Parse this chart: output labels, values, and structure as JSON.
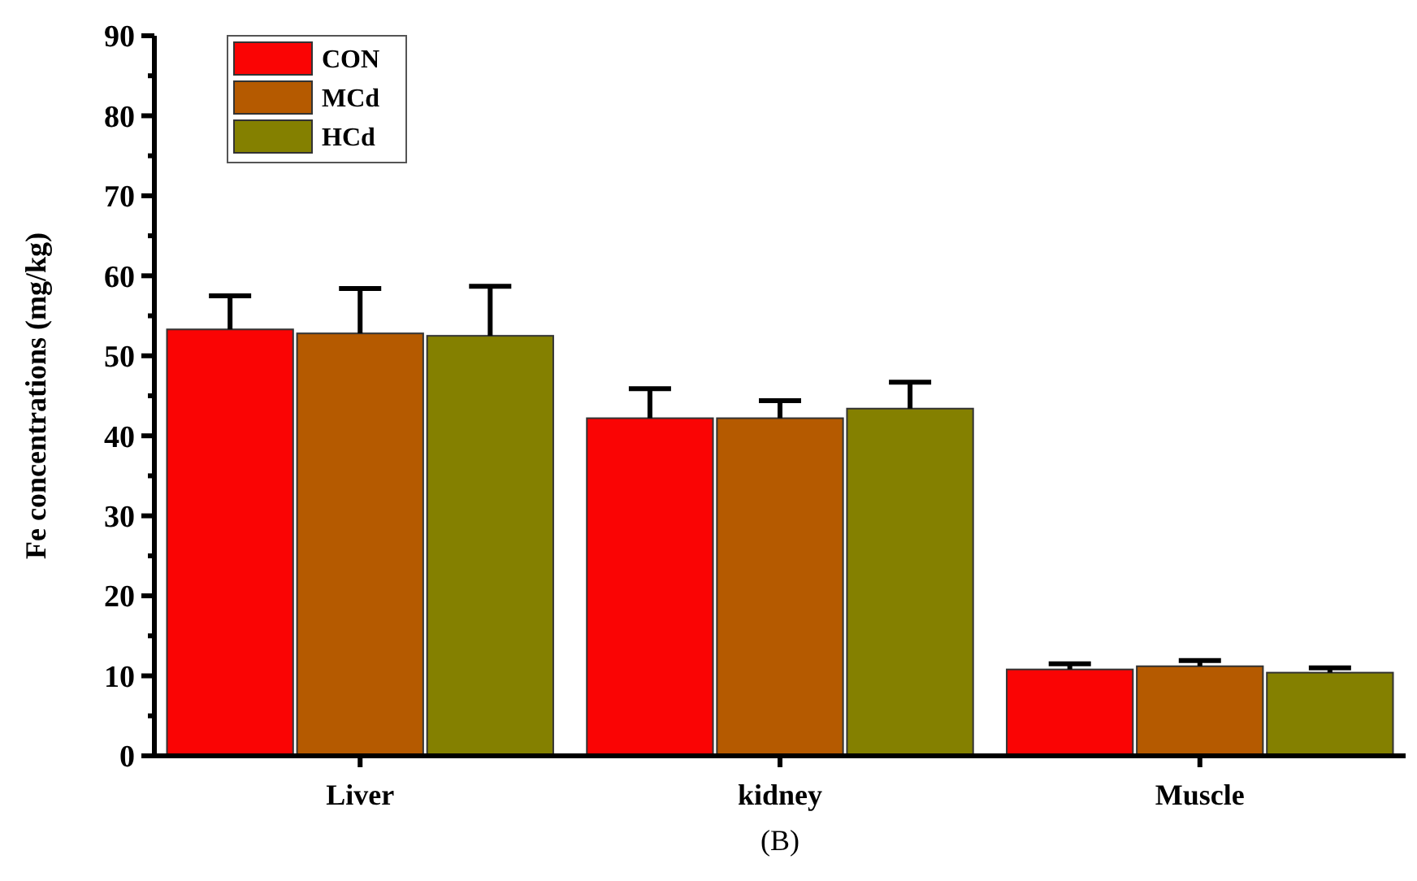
{
  "chart_data": {
    "type": "bar",
    "ylabel": "Fe concentrations (mg/kg)",
    "categories": [
      "Liver",
      "kidney",
      "Muscle"
    ],
    "series": [
      {
        "name": "CON",
        "color": "#fa0404",
        "values": [
          53.3,
          42.2,
          10.8
        ],
        "errors": [
          [
            53.3,
            57.5
          ],
          [
            42.2,
            45.9
          ],
          [
            10.8,
            11.5
          ]
        ]
      },
      {
        "name": "MCd",
        "color": "#b55a00",
        "values": [
          52.8,
          42.2,
          11.2
        ],
        "errors": [
          [
            52.8,
            58.4
          ],
          [
            42.2,
            44.4
          ],
          [
            11.2,
            11.9
          ]
        ]
      },
      {
        "name": "HCd",
        "color": "#848000",
        "values": [
          52.5,
          43.4,
          10.4
        ],
        "errors": [
          [
            52.5,
            58.7
          ],
          [
            43.4,
            46.7
          ],
          [
            10.4,
            11.0
          ]
        ]
      }
    ],
    "ylim": [
      0,
      90
    ],
    "yticks": [
      0,
      {
        "value": 5,
        "label": null
      },
      10,
      {
        "value": 15,
        "label": null
      },
      20,
      {
        "value": 25,
        "label": null
      },
      30,
      {
        "value": 35,
        "label": null
      },
      40,
      {
        "value": 45,
        "label": null
      },
      50,
      {
        "value": 55,
        "label": null
      },
      60,
      {
        "value": 65,
        "label": null
      },
      70,
      {
        "value": 75,
        "label": null
      },
      80,
      {
        "value": 85,
        "label": null
      },
      90
    ],
    "legend": "top left",
    "annotations": [
      "(B)"
    ]
  }
}
